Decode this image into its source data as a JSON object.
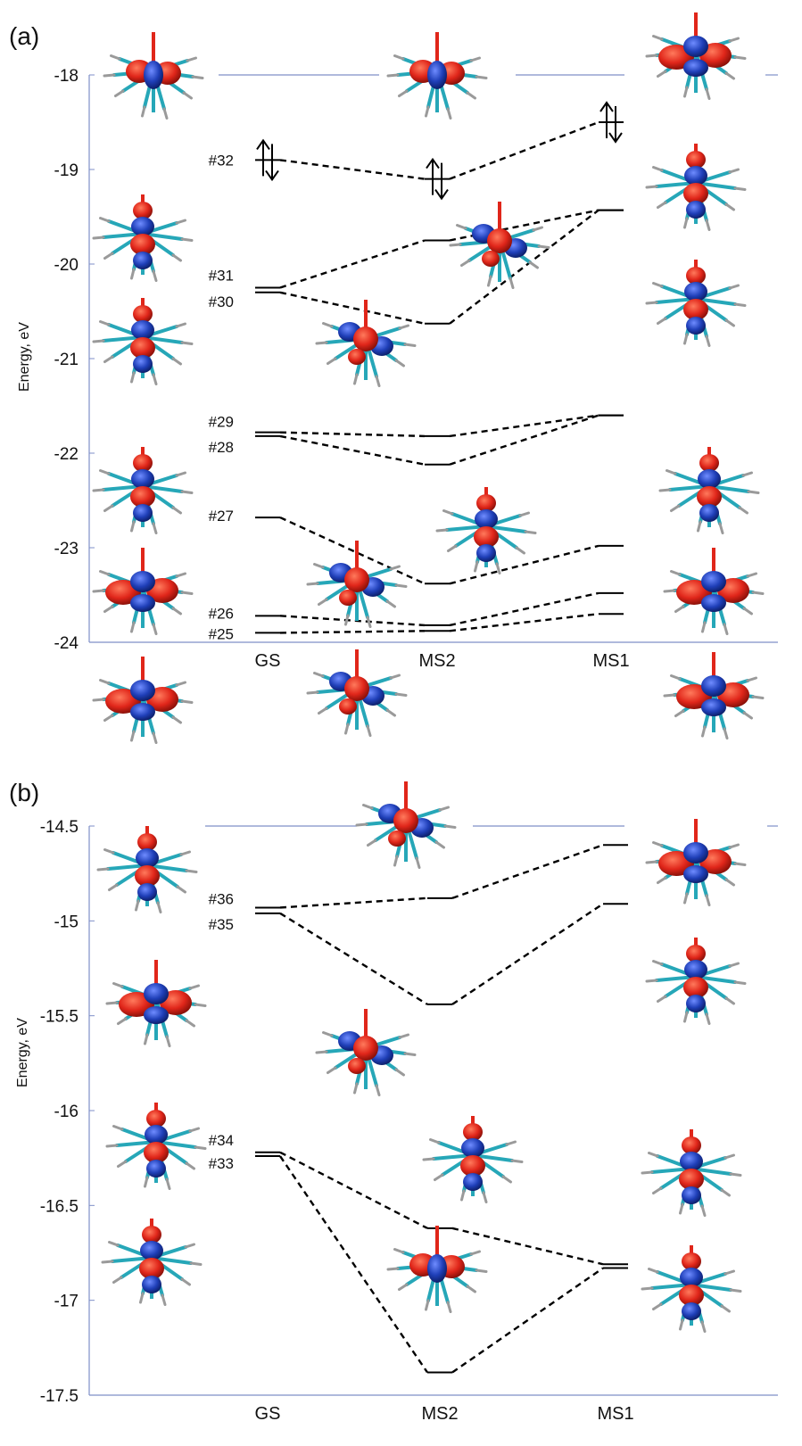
{
  "chart_data": [
    {
      "panel": "(a)",
      "type": "line",
      "ylabel": "Energy, eV",
      "ylim": [
        -24,
        -18
      ],
      "yticks": [
        "-18",
        "-19",
        "-20",
        "-21",
        "-22",
        "-23",
        "-24"
      ],
      "categories": [
        "GS",
        "MS2",
        "MS1"
      ],
      "levels": [
        {
          "label": "#32",
          "GS": -18.9,
          "MS2": -19.1,
          "MS1": -18.5,
          "occupied": true
        },
        {
          "label": "#31",
          "GS": -20.25,
          "MS2": -19.75,
          "MS1": -19.43
        },
        {
          "label": "#30",
          "GS": -20.3,
          "MS2": -20.63,
          "MS1": -19.43
        },
        {
          "label": "#29",
          "GS": -21.78,
          "MS2": -21.82,
          "MS1": -21.6
        },
        {
          "label": "#28",
          "GS": -21.82,
          "MS2": -22.12,
          "MS1": -21.6
        },
        {
          "label": "#27",
          "GS": -22.68,
          "MS2": -23.38,
          "MS1": -22.98
        },
        {
          "label": "#26",
          "GS": -23.72,
          "MS2": -23.82,
          "MS1": -23.48
        },
        {
          "label": "#25",
          "GS": -23.9,
          "MS2": -23.88,
          "MS1": -23.7
        }
      ]
    },
    {
      "panel": "(b)",
      "type": "line",
      "ylabel": "Energy, eV",
      "ylim": [
        -17.5,
        -14.5
      ],
      "yticks": [
        "-14.5",
        "-15",
        "-15.5",
        "-16",
        "-16.5",
        "-17",
        "-17.5"
      ],
      "categories": [
        "GS",
        "MS2",
        "MS1"
      ],
      "levels": [
        {
          "label": "#36",
          "GS": -14.93,
          "MS2": -14.88,
          "MS1": -14.6
        },
        {
          "label": "#35",
          "GS": -14.96,
          "MS2": -15.44,
          "MS1": -14.91
        },
        {
          "label": "#34",
          "GS": -16.22,
          "MS2": -16.62,
          "MS1": -16.81
        },
        {
          "label": "#33",
          "GS": -16.24,
          "MS2": -17.38,
          "MS1": -16.83
        }
      ]
    }
  ],
  "colors": {
    "axis": "#7f8fc8",
    "lobe_red": "#e0261a",
    "lobe_blue": "#1f3fb8",
    "bond_cyan": "#26a7b8",
    "bond_gray": "#9a9a9a"
  },
  "icons": [
    "molecular-orbital-isosurface"
  ]
}
